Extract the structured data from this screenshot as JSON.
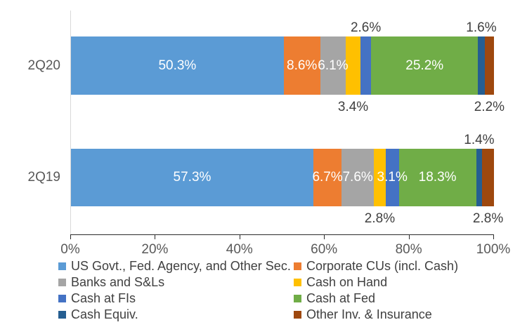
{
  "chart_data": {
    "type": "bar",
    "orientation": "horizontal",
    "stacked": true,
    "title": "",
    "categories": [
      "2Q20",
      "2Q19"
    ],
    "series": [
      {
        "name": "US Govt., Fed. Agency, and Other Sec.",
        "color": "#5B9BD5",
        "values": [
          50.3,
          57.3
        ]
      },
      {
        "name": "Corporate CUs (incl. Cash)",
        "color": "#ED7D31",
        "values": [
          8.6,
          6.7
        ]
      },
      {
        "name": "Banks and S&Ls",
        "color": "#A5A5A5",
        "values": [
          6.1,
          7.6
        ]
      },
      {
        "name": "Cash on Hand",
        "color": "#FFC000",
        "values": [
          3.4,
          2.8
        ]
      },
      {
        "name": "Cash at FIs",
        "color": "#4472C4",
        "values": [
          2.6,
          3.1
        ]
      },
      {
        "name": "Cash at Fed",
        "color": "#70AD47",
        "values": [
          25.2,
          18.3
        ]
      },
      {
        "name": "Cash Equiv.",
        "color": "#255E91",
        "values": [
          1.6,
          1.4
        ]
      },
      {
        "name": "Other Inv. & Insurance",
        "color": "#9E480E",
        "values": [
          2.2,
          2.8
        ]
      }
    ],
    "label_placements": [
      [
        "inside",
        "inside",
        "inside",
        "below",
        "above",
        "inside",
        "above",
        "below"
      ],
      [
        "inside",
        "inside",
        "inside",
        "below",
        "inside",
        "inside",
        "above",
        "below"
      ]
    ],
    "data_labels": {
      "format": "one-decimal-percent",
      "inside_color": "#FFFFFF",
      "outside_color": "#404040"
    },
    "x_axis": {
      "ticks": [
        "0%",
        "20%",
        "40%",
        "60%",
        "80%",
        "100%"
      ],
      "range": [
        0,
        100
      ],
      "label_color": "#595959"
    },
    "grid": false,
    "legend_position": "bottom"
  }
}
